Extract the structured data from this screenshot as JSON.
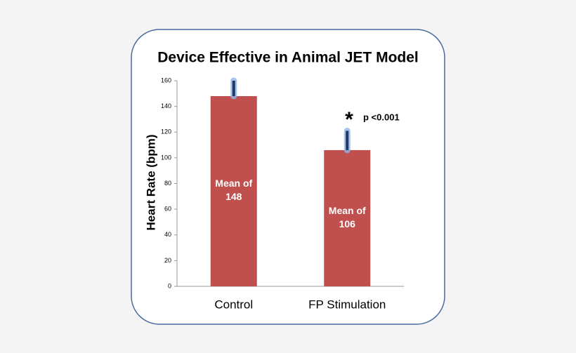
{
  "chart_data": {
    "type": "bar",
    "title": "Device Effective in Animal JET Model",
    "y_label": "Heart Rate (bpm)",
    "categories": [
      "Control",
      "FP Stimulation"
    ],
    "values": [
      148,
      106
    ],
    "value_labels": [
      "Mean of 148",
      "Mean of 106"
    ],
    "errors": [
      12,
      15
    ],
    "color": "#c0504d",
    "error_color": "#1f3864",
    "ylim": [
      0,
      160
    ],
    "yticks": [
      0,
      20,
      40,
      60,
      80,
      100,
      120,
      140,
      160
    ],
    "grid": false,
    "annotations": [
      "*",
      "p <0.001"
    ]
  }
}
